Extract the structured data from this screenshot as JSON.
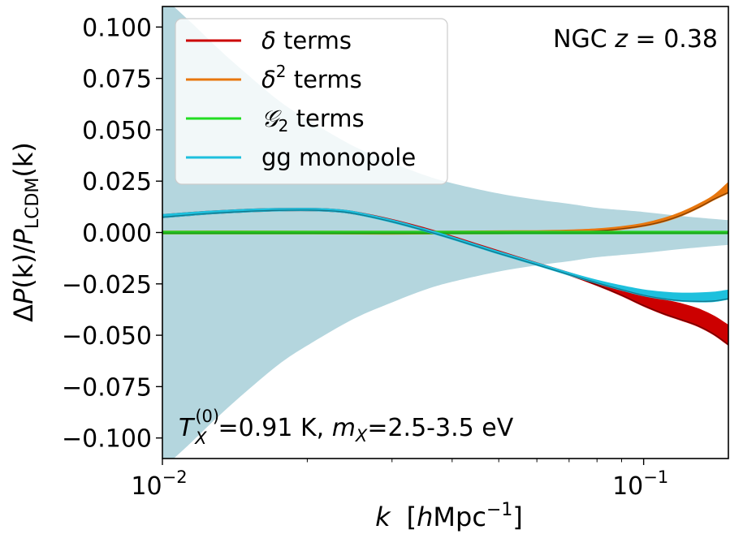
{
  "chart_data": {
    "type": "line",
    "x_scale": "log",
    "xlim": [
      0.01,
      0.15
    ],
    "ylim": [
      -0.11,
      0.11
    ],
    "xlabel": {
      "prefix": "k",
      "unit_open": "[",
      "unit_h": "h",
      "unit_body": "Mpc",
      "unit_exp": "−1",
      "unit_close": "]"
    },
    "ylabel": {
      "delta": "Δ",
      "P1": "P",
      "arg1": "(k)",
      "slash": "/",
      "P2": "P",
      "sub": "LCDM",
      "arg2": "(k)"
    },
    "x_ticks": [
      {
        "value": 0.01,
        "base": "10",
        "exp": "−2"
      },
      {
        "value": 0.1,
        "base": "10",
        "exp": "−1"
      }
    ],
    "y_ticks": [
      {
        "value": 0.1,
        "label": "0.100"
      },
      {
        "value": 0.075,
        "label": "0.075"
      },
      {
        "value": 0.05,
        "label": "0.050"
      },
      {
        "value": 0.025,
        "label": "0.025"
      },
      {
        "value": 0.0,
        "label": "0.000"
      },
      {
        "value": -0.025,
        "label": "−0.025"
      },
      {
        "value": -0.05,
        "label": "−0.050"
      },
      {
        "value": -0.075,
        "label": "−0.075"
      },
      {
        "value": -0.1,
        "label": "−0.100"
      }
    ],
    "grid": false,
    "legend_position": "top-left",
    "legend": [
      {
        "symbol": "δ",
        "sup": "",
        "sub": "",
        "text": " terms",
        "color": "#cc0000"
      },
      {
        "symbol": "δ",
        "sup": "2",
        "sub": "",
        "text": " terms",
        "color": "#e8770e"
      },
      {
        "symbol": "𝒢",
        "sup": "",
        "sub": "2",
        "text": " terms",
        "color": "#22dd22"
      },
      {
        "symbol": "",
        "sup": "",
        "sub": "",
        "text": "gg monopole",
        "color": "#1ec0dd"
      }
    ],
    "annotation_top_right": {
      "text": "NGC ",
      "var": "z",
      "eq": " = 0.38"
    },
    "annotation_bottom": {
      "T": "T",
      "T_sup": "(0)",
      "T_sub": "X",
      "T_val": "=0.91 K, ",
      "m": "m",
      "m_sub": "X",
      "m_val": "=2.5-3.5 eV"
    },
    "band": {
      "name": "error band",
      "color": "#b4d6de",
      "x": [
        0.01,
        0.0115,
        0.013,
        0.015,
        0.0175,
        0.02,
        0.025,
        0.03,
        0.035,
        0.04,
        0.05,
        0.06,
        0.07,
        0.08,
        0.1,
        0.12,
        0.15
      ],
      "upper": [
        0.115,
        0.102,
        0.09,
        0.077,
        0.064,
        0.055,
        0.042,
        0.034,
        0.028,
        0.024,
        0.019,
        0.016,
        0.014,
        0.012,
        0.01,
        0.008,
        0.006
      ],
      "lower": [
        -0.115,
        -0.102,
        -0.09,
        -0.077,
        -0.064,
        -0.055,
        -0.042,
        -0.034,
        -0.028,
        -0.024,
        -0.019,
        -0.016,
        -0.014,
        -0.012,
        -0.01,
        -0.008,
        -0.006
      ]
    },
    "series": [
      {
        "name": "δ terms",
        "color": "#cc0000",
        "dark": "#4a0000",
        "x": [
          0.01,
          0.0125,
          0.015,
          0.0175,
          0.02,
          0.0225,
          0.025,
          0.03,
          0.035,
          0.04,
          0.045,
          0.05,
          0.06,
          0.07,
          0.08,
          0.09,
          0.1,
          0.11,
          0.12,
          0.13,
          0.14,
          0.15
        ],
        "lower": [
          0.0075,
          0.0093,
          0.0103,
          0.0108,
          0.0109,
          0.0105,
          0.0093,
          0.0055,
          0.0014,
          -0.0026,
          -0.0064,
          -0.0098,
          -0.0155,
          -0.0205,
          -0.0255,
          -0.0305,
          -0.0355,
          -0.0395,
          -0.0425,
          -0.0455,
          -0.0495,
          -0.0545
        ],
        "upper": [
          0.0085,
          0.0101,
          0.011,
          0.0114,
          0.0115,
          0.0111,
          0.0099,
          0.0061,
          0.002,
          -0.002,
          -0.0058,
          -0.0092,
          -0.015,
          -0.0198,
          -0.024,
          -0.0275,
          -0.0305,
          -0.033,
          -0.035,
          -0.0375,
          -0.041,
          -0.0455
        ]
      },
      {
        "name": "δ² terms",
        "color": "#e8770e",
        "dark": "#5a2a00",
        "x": [
          0.01,
          0.02,
          0.03,
          0.04,
          0.05,
          0.06,
          0.07,
          0.08,
          0.09,
          0.1,
          0.11,
          0.12,
          0.13,
          0.14,
          0.15
        ],
        "lower": [
          -0.0004,
          -0.0004,
          -0.0005,
          -0.0004,
          -0.0003,
          -0.0002,
          0.0001,
          0.0007,
          0.0018,
          0.0033,
          0.0055,
          0.0085,
          0.0122,
          0.0162,
          0.0195
        ],
        "upper": [
          0.0004,
          0.0004,
          0.0003,
          0.0004,
          0.0005,
          0.0006,
          0.0009,
          0.0015,
          0.0026,
          0.0042,
          0.0066,
          0.0097,
          0.0135,
          0.0178,
          0.024
        ]
      },
      {
        "name": "𝒢₂ terms",
        "color": "#22cc22",
        "dark": "#1a8a1a",
        "x": [
          0.01,
          0.15
        ],
        "lower": [
          -0.0003,
          -0.0003
        ],
        "upper": [
          0.0003,
          0.0003
        ]
      },
      {
        "name": "gg monopole",
        "color": "#1ec0dd",
        "dark": "#0f5f70",
        "x": [
          0.01,
          0.0125,
          0.015,
          0.0175,
          0.02,
          0.0225,
          0.025,
          0.03,
          0.035,
          0.04,
          0.045,
          0.05,
          0.06,
          0.07,
          0.08,
          0.09,
          0.1,
          0.11,
          0.12,
          0.13,
          0.14,
          0.15
        ],
        "lower": [
          0.0075,
          0.0093,
          0.0103,
          0.0108,
          0.0109,
          0.0105,
          0.0093,
          0.0052,
          0.001,
          -0.003,
          -0.0068,
          -0.0102,
          -0.0157,
          -0.0205,
          -0.0245,
          -0.0278,
          -0.0305,
          -0.0322,
          -0.0332,
          -0.0335,
          -0.0333,
          -0.0322
        ],
        "upper": [
          0.0085,
          0.0101,
          0.011,
          0.0114,
          0.0115,
          0.0111,
          0.0099,
          0.0058,
          0.0016,
          -0.0024,
          -0.0062,
          -0.0096,
          -0.0151,
          -0.0198,
          -0.0235,
          -0.0262,
          -0.0282,
          -0.0293,
          -0.0298,
          -0.0297,
          -0.0293,
          -0.0283
        ]
      }
    ]
  }
}
